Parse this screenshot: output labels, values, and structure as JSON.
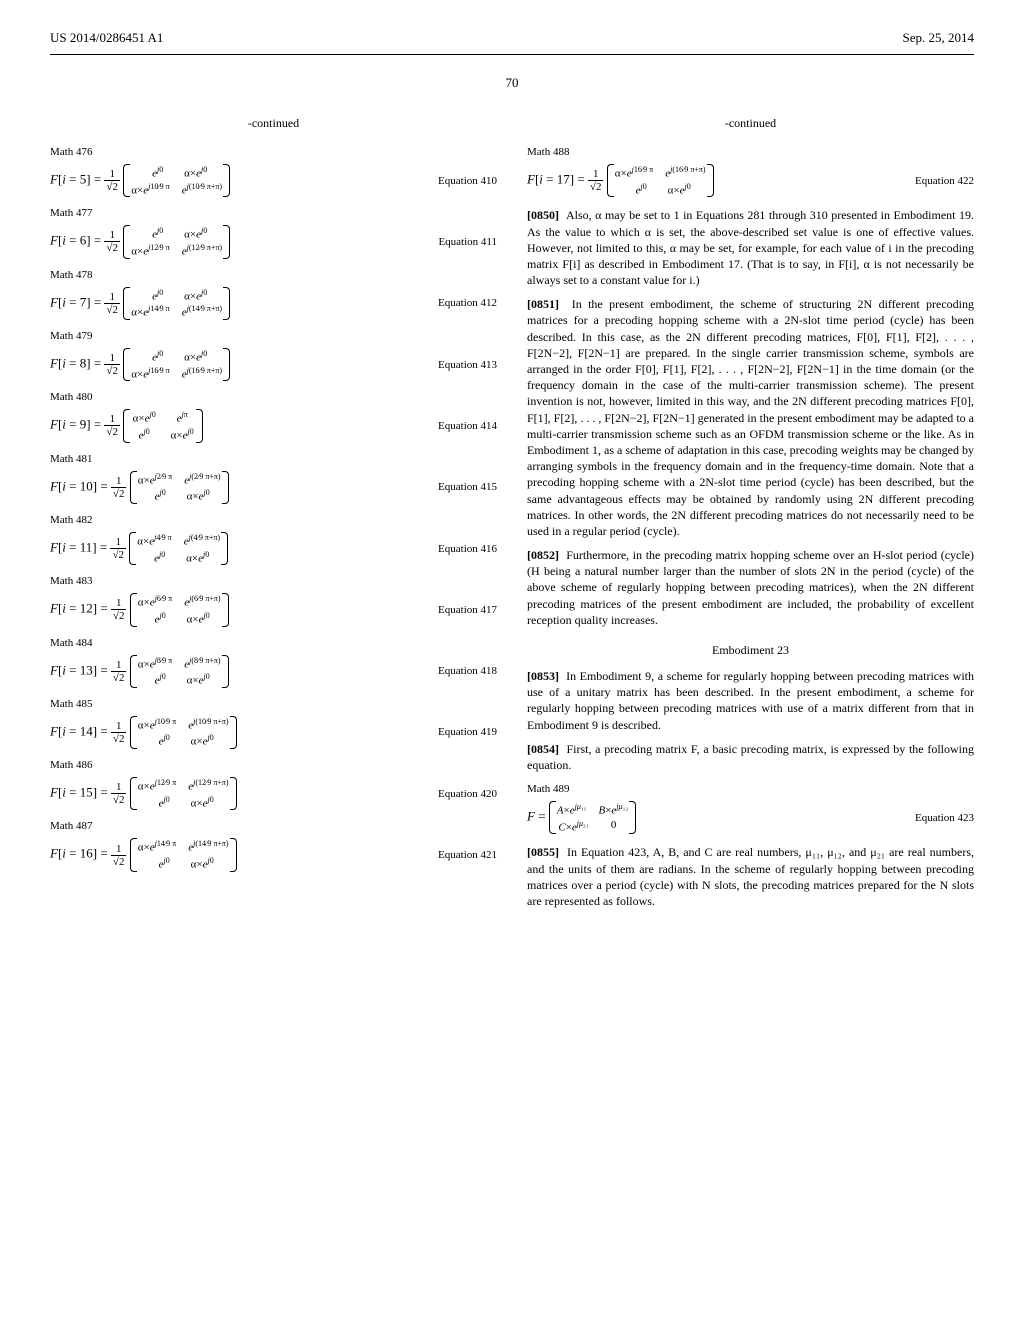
{
  "header": {
    "pub_number": "US 2014/0286451 A1",
    "date": "Sep. 25, 2014",
    "page": "70"
  },
  "continued": "-continued",
  "left_equations": [
    {
      "math_label": "Math 476",
      "i": "5",
      "exp1": "10",
      "exp2": "10",
      "eq_num": "Equation 410",
      "type": "A"
    },
    {
      "math_label": "Math 477",
      "i": "6",
      "exp1": "12",
      "exp2": "12",
      "eq_num": "Equation 411",
      "type": "A"
    },
    {
      "math_label": "Math 478",
      "i": "7",
      "exp1": "14",
      "exp2": "14",
      "eq_num": "Equation 412",
      "type": "A"
    },
    {
      "math_label": "Math 479",
      "i": "8",
      "exp1": "16",
      "exp2": "16",
      "eq_num": "Equation 413",
      "type": "A"
    },
    {
      "math_label": "Math 480",
      "i": "9",
      "exp1": "0",
      "exp2": "π",
      "eq_num": "Equation 414",
      "type": "B"
    },
    {
      "math_label": "Math 481",
      "i": "10",
      "exp1": "2",
      "exp2": "2",
      "eq_num": "Equation 415",
      "type": "C"
    },
    {
      "math_label": "Math 482",
      "i": "11",
      "exp1": "4",
      "exp2": "4",
      "eq_num": "Equation 416",
      "type": "C"
    },
    {
      "math_label": "Math 483",
      "i": "12",
      "exp1": "6",
      "exp2": "6",
      "eq_num": "Equation 417",
      "type": "C"
    },
    {
      "math_label": "Math 484",
      "i": "13",
      "exp1": "8",
      "exp2": "8",
      "eq_num": "Equation 418",
      "type": "C"
    },
    {
      "math_label": "Math 485",
      "i": "14",
      "exp1": "10",
      "exp2": "10",
      "eq_num": "Equation 419",
      "type": "C"
    },
    {
      "math_label": "Math 486",
      "i": "15",
      "exp1": "12",
      "exp2": "12",
      "eq_num": "Equation 420",
      "type": "C"
    },
    {
      "math_label": "Math 487",
      "i": "16",
      "exp1": "14",
      "exp2": "14",
      "eq_num": "Equation 421",
      "type": "C"
    }
  ],
  "right_equations": [
    {
      "math_label": "Math 488",
      "i": "17",
      "exp1": "16",
      "exp2": "16",
      "eq_num": "Equation 422",
      "type": "C"
    }
  ],
  "paragraphs": {
    "p0850_num": "[0850]",
    "p0850": "Also, α may be set to 1 in Equations 281 through 310 presented in Embodiment 19. As the value to which α is set, the above-described set value is one of effective values. However, not limited to this, α may be set, for example, for each value of i in the precoding matrix F[i] as described in Embodiment 17. (That is to say, in F[i], α is not necessarily be always set to a constant value for i.)",
    "p0851_num": "[0851]",
    "p0851": "In the present embodiment, the scheme of structuring 2N different precoding matrices for a precoding hopping scheme with a 2N-slot time period (cycle) has been described. In this case, as the 2N different precoding matrices, F[0], F[1], F[2], . . . , F[2N−2], F[2N−1] are prepared. In the single carrier transmission scheme, symbols are arranged in the order F[0], F[1], F[2], . . . , F[2N−2], F[2N−1] in the time domain (or the frequency domain in the case of the multi-carrier transmission scheme). The present invention is not, however, limited in this way, and the 2N different precoding matrices F[0], F[1], F[2], . . . , F[2N−2], F[2N−1] generated in the present embodiment may be adapted to a multi-carrier transmission scheme such as an OFDM transmission scheme or the like. As in Embodiment 1, as a scheme of adaptation in this case, precoding weights may be changed by arranging symbols in the frequency domain and in the frequency-time domain. Note that a precoding hopping scheme with a 2N-slot time period (cycle) has been described, but the same advantageous effects may be obtained by randomly using 2N different precoding matrices. In other words, the 2N different precoding matrices do not necessarily need to be used in a regular period (cycle).",
    "p0852_num": "[0852]",
    "p0852": "Furthermore, in the precoding matrix hopping scheme over an H-slot period (cycle) (H being a natural number larger than the number of slots 2N in the period (cycle) of the above scheme of regularly hopping between precoding matrices), when the 2N different precoding matrices of the present embodiment are included, the probability of excellent reception quality increases.",
    "emb23_title": "Embodiment 23",
    "p0853_num": "[0853]",
    "p0853": "In Embodiment 9, a scheme for regularly hopping between precoding matrices with use of a unitary matrix has been described. In the present embodiment, a scheme for regularly hopping between precoding matrices with use of a matrix different from that in Embodiment 9 is described.",
    "p0854_num": "[0854]",
    "p0854": "First, a precoding matrix F, a basic precoding matrix, is expressed by the following equation.",
    "math489_label": "Math 489",
    "eq423_num": "Equation 423",
    "p0855_num": "[0855]",
    "p0855": "In Equation 423, A, B, and C are real numbers, μ₁₁, μ₁₂, and μ₂₁ are real numbers, and the units of them are radians. In the scheme of regularly hopping between precoding matrices over a period (cycle) with N slots, the precoding matrices prepared for the N slots are represented as follows."
  }
}
